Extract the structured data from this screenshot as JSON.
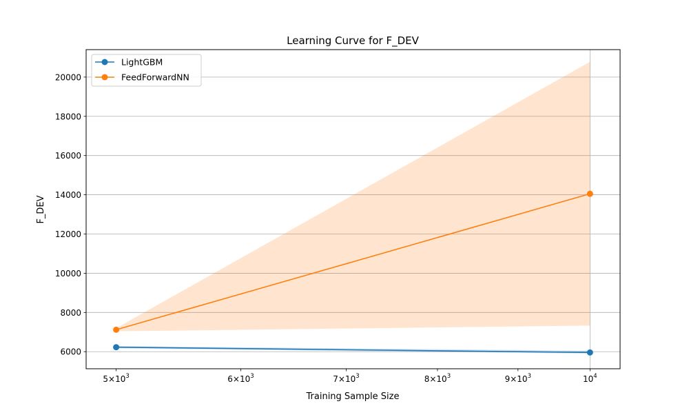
{
  "chart_data": {
    "type": "line",
    "title": "Learning Curve for F_DEV",
    "xlabel": "Training Sample Size",
    "ylabel": "F_DEV",
    "x_scale": "log",
    "xlim": [
      4785,
      10450
    ],
    "ylim": [
      5130,
      21400
    ],
    "grid": true,
    "legend_position": "upper-left",
    "x_ticks": [
      {
        "value": 5000,
        "base": "5×10",
        "exp": "3"
      },
      {
        "value": 6000,
        "base": "6×10",
        "exp": "3"
      },
      {
        "value": 7000,
        "base": "7×10",
        "exp": "3"
      },
      {
        "value": 8000,
        "base": "8×10",
        "exp": "3"
      },
      {
        "value": 9000,
        "base": "9×10",
        "exp": "3"
      },
      {
        "value": 10000,
        "base": "10",
        "exp": "4"
      }
    ],
    "y_ticks": [
      6000,
      8000,
      10000,
      12000,
      14000,
      16000,
      18000,
      20000
    ],
    "x": [
      5000,
      10000
    ],
    "series": [
      {
        "name": "LightGBM",
        "color": "#1f77b4",
        "band_color": "#1f77b4",
        "band_opacity": 0.2,
        "values": [
          6230,
          5960
        ],
        "lower": [
          6170,
          5900
        ],
        "upper": [
          6290,
          6050
        ]
      },
      {
        "name": "FeedForwardNN",
        "color": "#ff7f0e",
        "band_color": "#ff7f0e",
        "band_opacity": 0.2,
        "values": [
          7120,
          14050
        ],
        "lower": [
          7040,
          7330
        ],
        "upper": [
          7200,
          20780
        ]
      }
    ]
  }
}
